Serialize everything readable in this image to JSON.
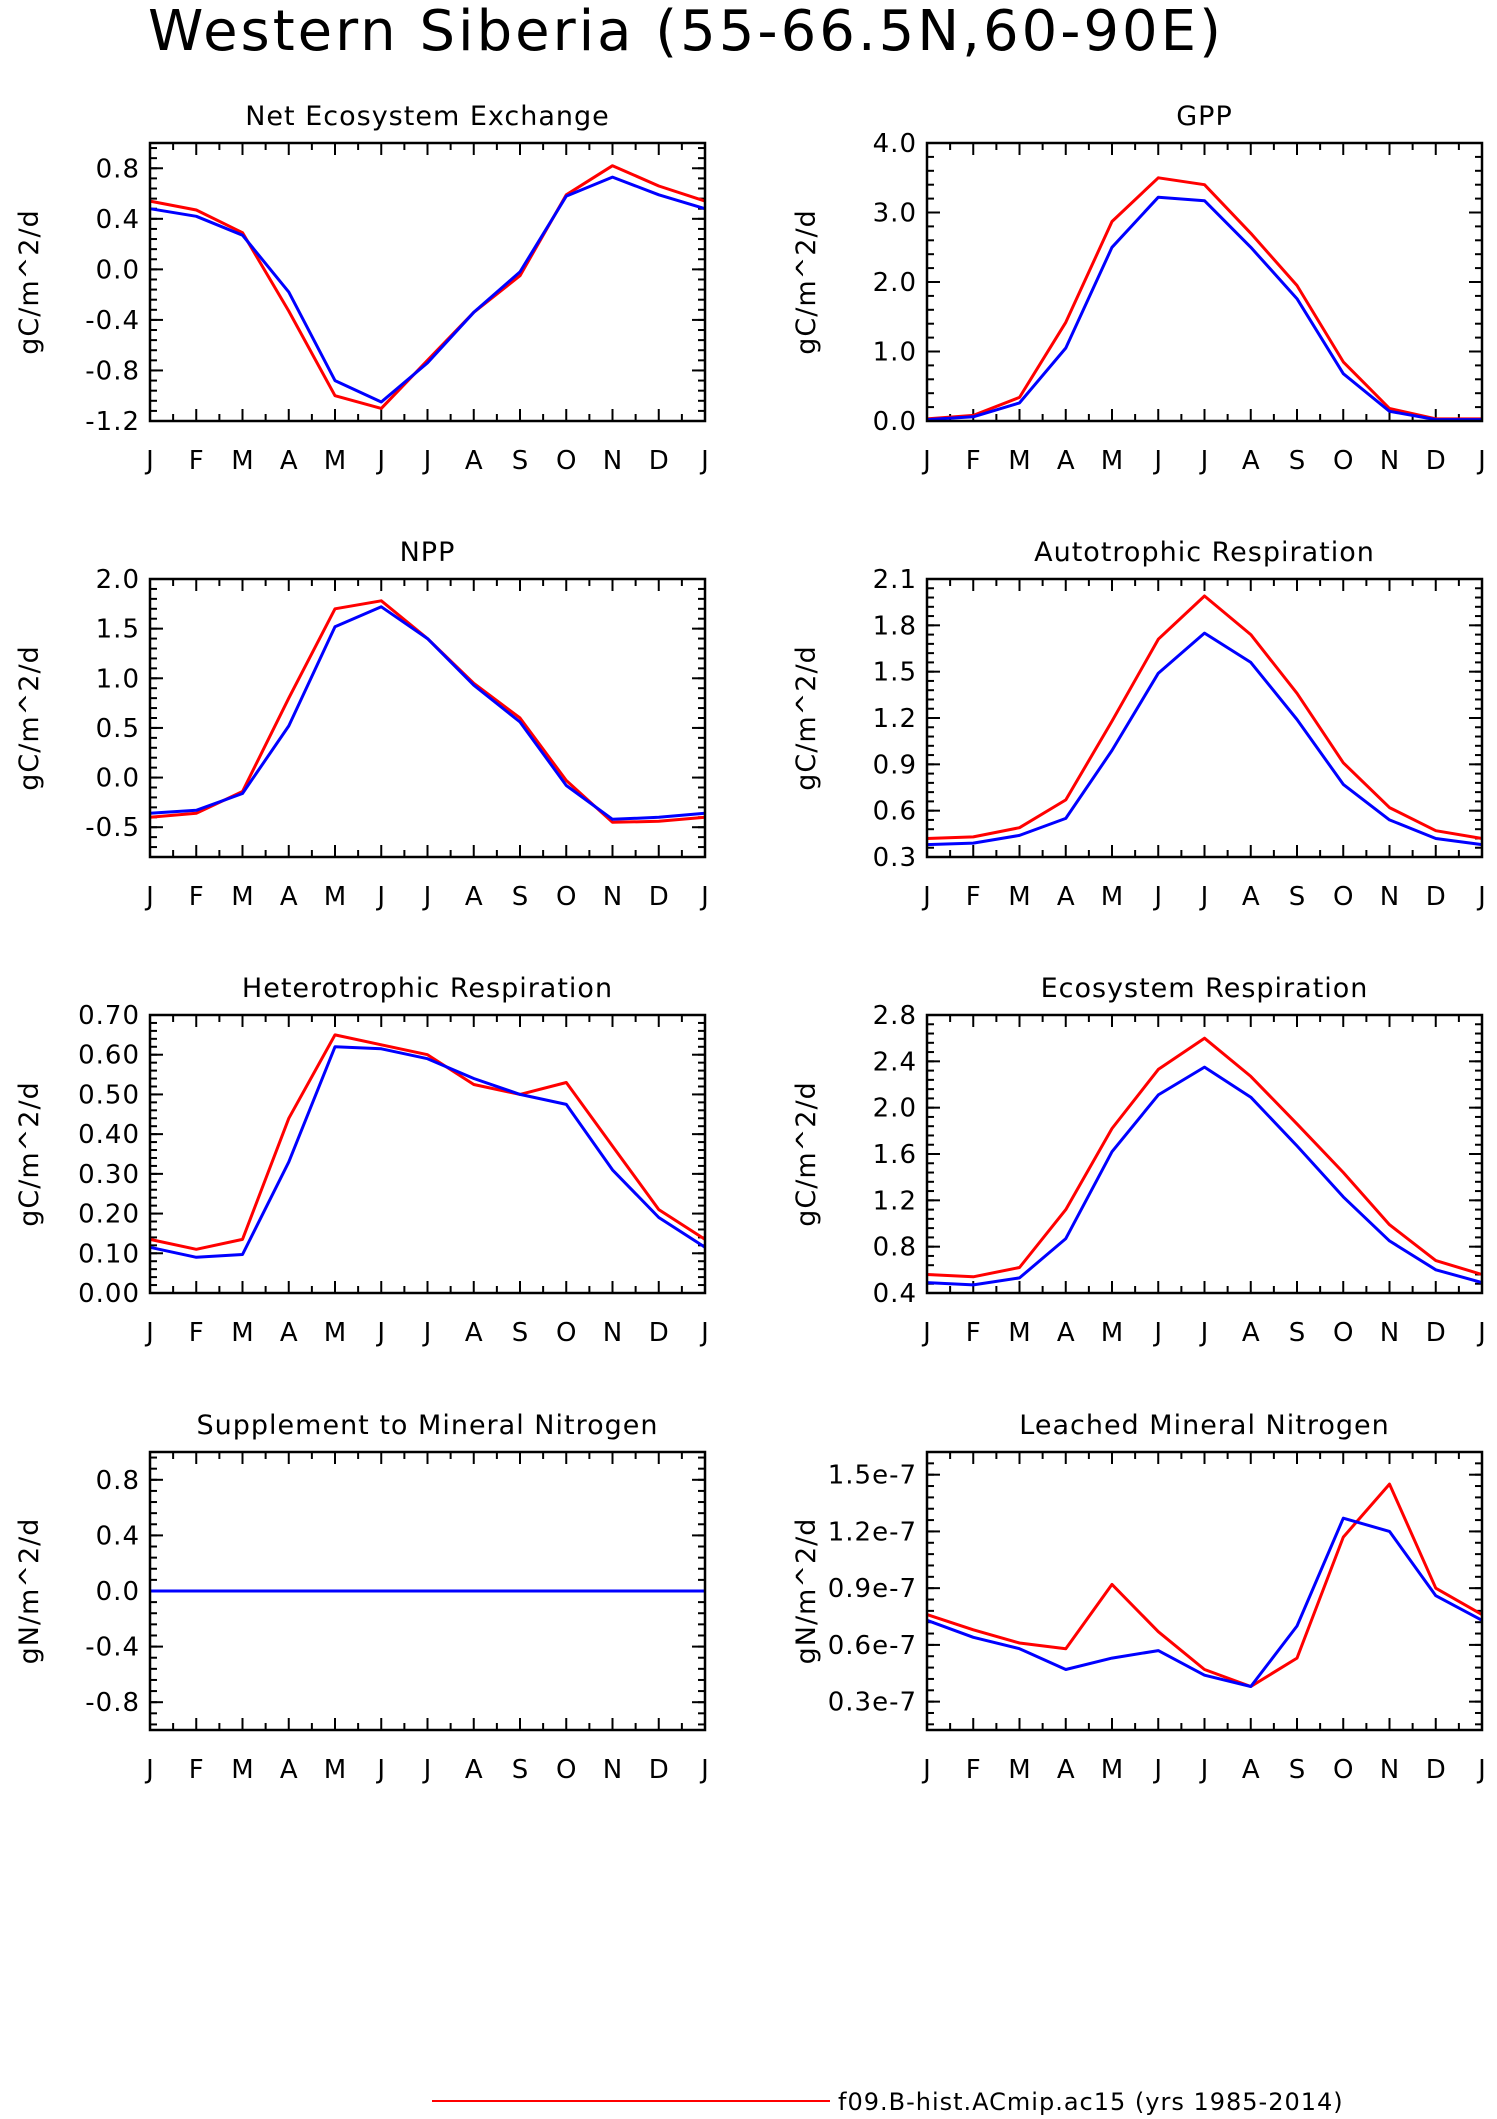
{
  "figure": {
    "title": "Western Siberia (55-66.5N,60-90E)",
    "legend": [
      {
        "label": "f09.B-hist.ACmip.ac15 (yrs 1985-2014)",
        "color": "#ff0000"
      }
    ]
  },
  "series_colors": {
    "red": "#ff0000",
    "blue": "#0000ff"
  },
  "chart_data": [
    {
      "type": "line",
      "title": "Net Ecosystem Exchange",
      "ylabel": "gC/m^2/d",
      "categories": [
        "J",
        "F",
        "M",
        "A",
        "M",
        "J",
        "J",
        "A",
        "S",
        "O",
        "N",
        "D",
        "J"
      ],
      "ylim": [
        -1.2,
        1.0
      ],
      "yticks": [
        -1.2,
        -0.8,
        -0.4,
        0.0,
        0.4,
        0.8
      ],
      "ytick_labels": [
        "-1.2",
        "-0.8",
        "-0.4",
        "0.0",
        "0.4",
        "0.8"
      ],
      "series": [
        {
          "color": "#ff0000",
          "values": [
            0.54,
            0.47,
            0.29,
            -0.33,
            -1.0,
            -1.1,
            -0.72,
            -0.34,
            -0.05,
            0.59,
            0.82,
            0.66,
            0.54
          ]
        },
        {
          "color": "#0000ff",
          "values": [
            0.48,
            0.42,
            0.27,
            -0.18,
            -0.88,
            -1.05,
            -0.74,
            -0.34,
            -0.02,
            0.58,
            0.73,
            0.59,
            0.48
          ]
        }
      ]
    },
    {
      "type": "line",
      "title": "GPP",
      "ylabel": "gC/m^2/d",
      "categories": [
        "J",
        "F",
        "M",
        "A",
        "M",
        "J",
        "J",
        "A",
        "S",
        "O",
        "N",
        "D",
        "J"
      ],
      "ylim": [
        0.0,
        4.0
      ],
      "yticks": [
        0.0,
        1.0,
        2.0,
        3.0,
        4.0
      ],
      "ytick_labels": [
        "0.0",
        "1.0",
        "2.0",
        "3.0",
        "4.0"
      ],
      "series": [
        {
          "color": "#ff0000",
          "values": [
            0.03,
            0.08,
            0.34,
            1.42,
            2.87,
            3.5,
            3.4,
            2.7,
            1.95,
            0.85,
            0.18,
            0.03,
            0.03
          ]
        },
        {
          "color": "#0000ff",
          "values": [
            0.02,
            0.06,
            0.26,
            1.05,
            2.5,
            3.22,
            3.17,
            2.5,
            1.76,
            0.68,
            0.14,
            0.02,
            0.02
          ]
        }
      ]
    },
    {
      "type": "line",
      "title": "NPP",
      "ylabel": "gC/m^2/d",
      "categories": [
        "J",
        "F",
        "M",
        "A",
        "M",
        "J",
        "J",
        "A",
        "S",
        "O",
        "N",
        "D",
        "J"
      ],
      "ylim": [
        -0.8,
        2.0
      ],
      "yticks": [
        -0.5,
        0.0,
        0.5,
        1.0,
        1.5,
        2.0
      ],
      "ytick_labels": [
        "-0.5",
        "0.0",
        "0.5",
        "1.0",
        "1.5",
        "2.0"
      ],
      "series": [
        {
          "color": "#ff0000",
          "values": [
            -0.4,
            -0.36,
            -0.14,
            0.8,
            1.7,
            1.78,
            1.4,
            0.95,
            0.6,
            -0.03,
            -0.45,
            -0.44,
            -0.4
          ]
        },
        {
          "color": "#0000ff",
          "values": [
            -0.36,
            -0.33,
            -0.16,
            0.52,
            1.52,
            1.72,
            1.4,
            0.93,
            0.56,
            -0.08,
            -0.42,
            -0.4,
            -0.36
          ]
        }
      ]
    },
    {
      "type": "line",
      "title": "Autotrophic Respiration",
      "ylabel": "gC/m^2/d",
      "categories": [
        "J",
        "F",
        "M",
        "A",
        "M",
        "J",
        "J",
        "A",
        "S",
        "O",
        "N",
        "D",
        "J"
      ],
      "ylim": [
        0.3,
        2.1
      ],
      "yticks": [
        0.3,
        0.6,
        0.9,
        1.2,
        1.5,
        1.8,
        2.1
      ],
      "ytick_labels": [
        "0.3",
        "0.6",
        "0.9",
        "1.2",
        "1.5",
        "1.8",
        "2.1"
      ],
      "series": [
        {
          "color": "#ff0000",
          "values": [
            0.42,
            0.43,
            0.49,
            0.67,
            1.18,
            1.71,
            1.99,
            1.74,
            1.36,
            0.91,
            0.62,
            0.47,
            0.42
          ]
        },
        {
          "color": "#0000ff",
          "values": [
            0.38,
            0.39,
            0.44,
            0.55,
            0.99,
            1.49,
            1.75,
            1.56,
            1.19,
            0.77,
            0.54,
            0.42,
            0.38
          ]
        }
      ]
    },
    {
      "type": "line",
      "title": "Heterotrophic Respiration",
      "ylabel": "gC/m^2/d",
      "categories": [
        "J",
        "F",
        "M",
        "A",
        "M",
        "J",
        "J",
        "A",
        "S",
        "O",
        "N",
        "D",
        "J"
      ],
      "ylim": [
        0.0,
        0.7
      ],
      "yticks": [
        0.0,
        0.1,
        0.2,
        0.3,
        0.4,
        0.5,
        0.6,
        0.7
      ],
      "ytick_labels": [
        "0.00",
        "0.10",
        "0.20",
        "0.30",
        "0.40",
        "0.50",
        "0.60",
        "0.70"
      ],
      "series": [
        {
          "color": "#ff0000",
          "values": [
            0.135,
            0.11,
            0.135,
            0.44,
            0.65,
            0.625,
            0.6,
            0.525,
            0.5,
            0.53,
            0.37,
            0.21,
            0.135
          ]
        },
        {
          "color": "#0000ff",
          "values": [
            0.115,
            0.09,
            0.097,
            0.33,
            0.62,
            0.615,
            0.59,
            0.54,
            0.5,
            0.475,
            0.31,
            0.19,
            0.115
          ]
        }
      ]
    },
    {
      "type": "line",
      "title": "Ecosystem Respiration",
      "ylabel": "gC/m^2/d",
      "categories": [
        "J",
        "F",
        "M",
        "A",
        "M",
        "J",
        "J",
        "A",
        "S",
        "O",
        "N",
        "D",
        "J"
      ],
      "ylim": [
        0.4,
        2.8
      ],
      "yticks": [
        0.4,
        0.8,
        1.2,
        1.6,
        2.0,
        2.4,
        2.8
      ],
      "ytick_labels": [
        "0.4",
        "0.8",
        "1.2",
        "1.6",
        "2.0",
        "2.4",
        "2.8"
      ],
      "series": [
        {
          "color": "#ff0000",
          "values": [
            0.56,
            0.54,
            0.62,
            1.12,
            1.82,
            2.33,
            2.6,
            2.27,
            1.86,
            1.44,
            0.99,
            0.68,
            0.56
          ]
        },
        {
          "color": "#0000ff",
          "values": [
            0.49,
            0.47,
            0.53,
            0.87,
            1.62,
            2.11,
            2.35,
            2.09,
            1.67,
            1.23,
            0.85,
            0.6,
            0.49
          ]
        }
      ]
    },
    {
      "type": "line",
      "title": "Supplement to Mineral Nitrogen",
      "ylabel": "gN/m^2/d",
      "categories": [
        "J",
        "F",
        "M",
        "A",
        "M",
        "J",
        "J",
        "A",
        "S",
        "O",
        "N",
        "D",
        "J"
      ],
      "ylim": [
        -1.0,
        1.0
      ],
      "yticks": [
        -0.8,
        -0.4,
        0.0,
        0.4,
        0.8
      ],
      "ytick_labels": [
        "-0.8",
        "-0.4",
        "0.0",
        "0.4",
        "0.8"
      ],
      "series": [
        {
          "color": "#ff0000",
          "values": [
            0,
            0,
            0,
            0,
            0,
            0,
            0,
            0,
            0,
            0,
            0,
            0,
            0
          ]
        },
        {
          "color": "#0000ff",
          "values": [
            0,
            0,
            0,
            0,
            0,
            0,
            0,
            0,
            0,
            0,
            0,
            0,
            0
          ]
        }
      ]
    },
    {
      "type": "line",
      "title": "Leached Mineral Nitrogen",
      "ylabel": "gN/m^2/d",
      "categories": [
        "J",
        "F",
        "M",
        "A",
        "M",
        "J",
        "J",
        "A",
        "S",
        "O",
        "N",
        "D",
        "J"
      ],
      "ylim": [
        1.5e-08,
        1.62e-07
      ],
      "yticks": [
        3e-08,
        6e-08,
        9e-08,
        1.2e-07,
        1.5e-07
      ],
      "ytick_labels": [
        "0.3e-7",
        "0.6e-7",
        "0.9e-7",
        "1.2e-7",
        "1.5e-7"
      ],
      "series": [
        {
          "color": "#ff0000",
          "values": [
            7.6e-08,
            6.8e-08,
            6.1e-08,
            5.8e-08,
            9.2e-08,
            6.7e-08,
            4.7e-08,
            3.8e-08,
            5.3e-08,
            1.17e-07,
            1.45e-07,
            9e-08,
            7.6e-08
          ]
        },
        {
          "color": "#0000ff",
          "values": [
            7.3e-08,
            6.4e-08,
            5.8e-08,
            4.7e-08,
            5.3e-08,
            5.7e-08,
            4.4e-08,
            3.8e-08,
            7e-08,
            1.27e-07,
            1.2e-07,
            8.6e-08,
            7.3e-08
          ]
        }
      ]
    }
  ]
}
